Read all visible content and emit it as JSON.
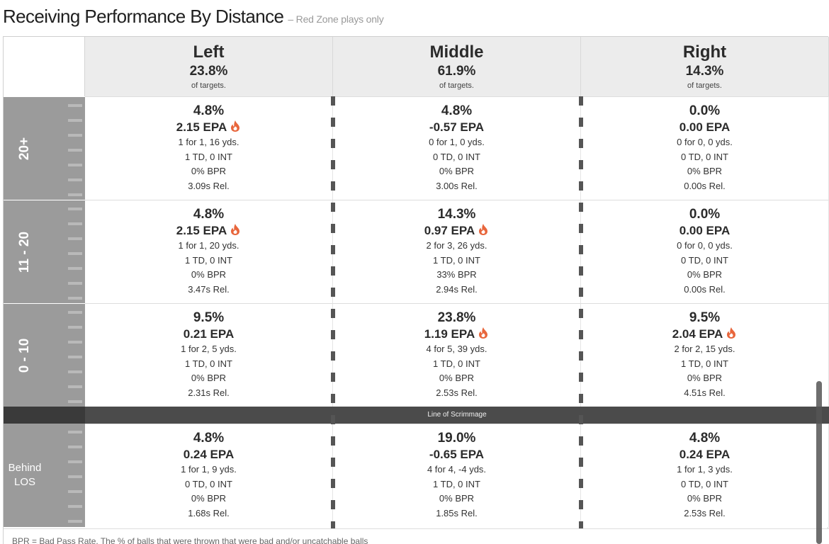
{
  "header": {
    "title": "Receiving Performance By Distance",
    "subtitle": "– Red Zone plays only"
  },
  "columns": [
    {
      "direction": "Left",
      "target_share": "23.8%",
      "share_label": "of targets."
    },
    {
      "direction": "Middle",
      "target_share": "61.9%",
      "share_label": "of targets."
    },
    {
      "direction": "Right",
      "target_share": "14.3%",
      "share_label": "of targets."
    }
  ],
  "rows": [
    {
      "label": "20+",
      "cells": [
        {
          "pct": "4.8%",
          "epa": "2.15 EPA",
          "hot": true,
          "completions": "1 for 1, 16 yds.",
          "td_int": "1 TD, 0 INT",
          "bpr": "0% BPR",
          "rel": "3.09s Rel."
        },
        {
          "pct": "4.8%",
          "epa": "-0.57 EPA",
          "hot": false,
          "completions": "0 for 1, 0 yds.",
          "td_int": "0 TD, 0 INT",
          "bpr": "0% BPR",
          "rel": "3.00s Rel."
        },
        {
          "pct": "0.0%",
          "epa": "0.00 EPA",
          "hot": false,
          "completions": "0 for 0, 0 yds.",
          "td_int": "0 TD, 0 INT",
          "bpr": "0% BPR",
          "rel": "0.00s Rel."
        }
      ]
    },
    {
      "label": "11 - 20",
      "cells": [
        {
          "pct": "4.8%",
          "epa": "2.15 EPA",
          "hot": true,
          "completions": "1 for 1, 20 yds.",
          "td_int": "1 TD, 0 INT",
          "bpr": "0% BPR",
          "rel": "3.47s Rel."
        },
        {
          "pct": "14.3%",
          "epa": "0.97 EPA",
          "hot": true,
          "completions": "2 for 3, 26 yds.",
          "td_int": "1 TD, 0 INT",
          "bpr": "33% BPR",
          "rel": "2.94s Rel."
        },
        {
          "pct": "0.0%",
          "epa": "0.00 EPA",
          "hot": false,
          "completions": "0 for 0, 0 yds.",
          "td_int": "0 TD, 0 INT",
          "bpr": "0% BPR",
          "rel": "0.00s Rel."
        }
      ]
    },
    {
      "label": "0 - 10",
      "cells": [
        {
          "pct": "9.5%",
          "epa": "0.21 EPA",
          "hot": false,
          "completions": "1 for 2, 5 yds.",
          "td_int": "1 TD, 0 INT",
          "bpr": "0% BPR",
          "rel": "2.31s Rel."
        },
        {
          "pct": "23.8%",
          "epa": "1.19 EPA",
          "hot": true,
          "completions": "4 for 5, 39 yds.",
          "td_int": "1 TD, 0 INT",
          "bpr": "0% BPR",
          "rel": "2.53s Rel."
        },
        {
          "pct": "9.5%",
          "epa": "2.04 EPA",
          "hot": true,
          "completions": "2 for 2, 15 yds.",
          "td_int": "1 TD, 0 INT",
          "bpr": "0% BPR",
          "rel": "4.51s Rel."
        }
      ]
    },
    {
      "label": "Behind LOS",
      "cells": [
        {
          "pct": "4.8%",
          "epa": "0.24 EPA",
          "hot": false,
          "completions": "1 for 1, 9 yds.",
          "td_int": "0 TD, 0 INT",
          "bpr": "0% BPR",
          "rel": "1.68s Rel."
        },
        {
          "pct": "19.0%",
          "epa": "-0.65 EPA",
          "hot": false,
          "completions": "4 for 4, -4 yds.",
          "td_int": "1 TD, 0 INT",
          "bpr": "0% BPR",
          "rel": "1.85s Rel."
        },
        {
          "pct": "4.8%",
          "epa": "0.24 EPA",
          "hot": false,
          "completions": "1 for 1, 3 yds.",
          "td_int": "0 TD, 0 INT",
          "bpr": "0% BPR",
          "rel": "2.53s Rel."
        }
      ]
    }
  ],
  "line_of_scrimmage_label": "Line of Scrimmage",
  "footnote": "BPR = Bad Pass Rate. The % of balls that were thrown that were bad and/or uncatchable balls",
  "colors": {
    "label_bg": "#9b9b9b",
    "header_bg": "#ececec",
    "los_bar": "#4b4b4b",
    "fire": "#e8663c"
  },
  "chart_data": {
    "type": "table",
    "title": "Receiving Performance By Distance",
    "subtitle": "– Red Zone plays only",
    "columns": [
      "Left",
      "Middle",
      "Right"
    ],
    "column_target_share_pct": [
      23.8,
      61.9,
      14.3
    ],
    "rows": [
      "20+",
      "11 - 20",
      "0 - 10",
      "Behind LOS"
    ],
    "target_share_pct": [
      [
        4.8,
        4.8,
        0.0
      ],
      [
        4.8,
        14.3,
        0.0
      ],
      [
        9.5,
        23.8,
        9.5
      ],
      [
        4.8,
        19.0,
        4.8
      ]
    ],
    "epa": [
      [
        2.15,
        -0.57,
        0.0
      ],
      [
        2.15,
        0.97,
        0.0
      ],
      [
        0.21,
        1.19,
        2.04
      ],
      [
        0.24,
        -0.65,
        0.24
      ]
    ],
    "completions": [
      [
        1,
        0,
        0
      ],
      [
        1,
        2,
        0
      ],
      [
        1,
        4,
        2
      ],
      [
        1,
        4,
        1
      ]
    ],
    "targets": [
      [
        1,
        1,
        0
      ],
      [
        1,
        3,
        0
      ],
      [
        2,
        5,
        2
      ],
      [
        1,
        4,
        1
      ]
    ],
    "yards": [
      [
        16,
        0,
        0
      ],
      [
        20,
        26,
        0
      ],
      [
        5,
        39,
        15
      ],
      [
        9,
        -4,
        3
      ]
    ],
    "touchdowns": [
      [
        1,
        0,
        0
      ],
      [
        1,
        1,
        0
      ],
      [
        1,
        1,
        1
      ],
      [
        0,
        1,
        0
      ]
    ],
    "interceptions": [
      [
        0,
        0,
        0
      ],
      [
        0,
        0,
        0
      ],
      [
        0,
        0,
        0
      ],
      [
        0,
        0,
        0
      ]
    ],
    "bad_pass_rate_pct": [
      [
        0,
        0,
        0
      ],
      [
        0,
        33,
        0
      ],
      [
        0,
        0,
        0
      ],
      [
        0,
        0,
        0
      ]
    ],
    "release_time_s": [
      [
        3.09,
        3.0,
        0.0
      ],
      [
        3.47,
        2.94,
        0.0
      ],
      [
        2.31,
        2.53,
        4.51
      ],
      [
        1.68,
        1.85,
        2.53
      ]
    ]
  }
}
